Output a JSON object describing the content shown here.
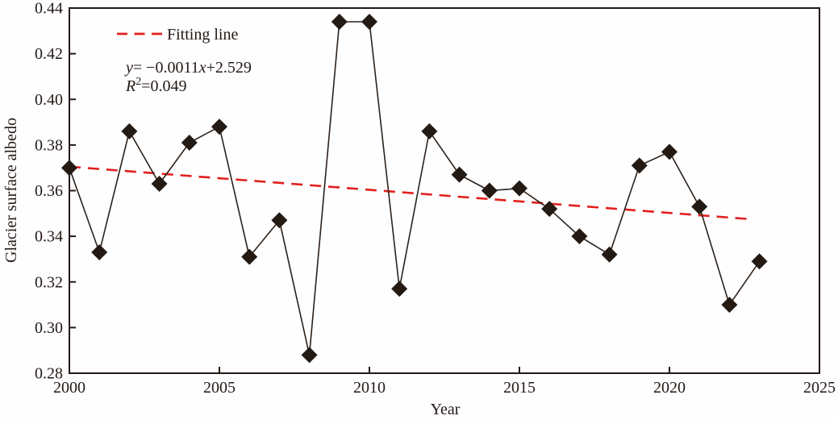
{
  "chart_data": {
    "type": "line",
    "title": "",
    "xlabel": "Year",
    "ylabel": "Glacier surface albedo",
    "xlim": [
      2000,
      2025
    ],
    "ylim": [
      0.28,
      0.44
    ],
    "grid": false,
    "legend_position": "top-left",
    "x_tick_labels": [
      "2000",
      "2005",
      "2010",
      "2015",
      "2020",
      "2025"
    ],
    "x_tick_values": [
      2000,
      2005,
      2010,
      2015,
      2020,
      2025
    ],
    "y_tick_labels": [
      "0.28",
      "0.30",
      "0.32",
      "0.34",
      "0.36",
      "0.38",
      "0.40",
      "0.42",
      "0.44"
    ],
    "y_tick_values": [
      0.28,
      0.3,
      0.32,
      0.34,
      0.36,
      0.38,
      0.4,
      0.42,
      0.44
    ],
    "x": [
      2000,
      2001,
      2002,
      2003,
      2004,
      2005,
      2006,
      2007,
      2008,
      2009,
      2010,
      2011,
      2012,
      2013,
      2014,
      2015,
      2016,
      2017,
      2018,
      2019,
      2020,
      2021,
      2022,
      2023
    ],
    "series": [
      {
        "name": "Glacier surface albedo",
        "marker": "diamond",
        "values": [
          0.37,
          0.333,
          0.386,
          0.363,
          0.381,
          0.388,
          0.331,
          0.347,
          0.288,
          0.434,
          0.434,
          0.317,
          0.386,
          0.367,
          0.36,
          0.361,
          0.352,
          0.34,
          0.332,
          0.371,
          0.377,
          0.353,
          0.31,
          0.329
        ]
      }
    ],
    "fit_line": {
      "label": "Fitting line",
      "equation": "y= −0.0011x+2.529",
      "r_squared": "R²=0.049",
      "slope": -0.0011,
      "intercept": 2.529,
      "x1": 2000,
      "y1": 0.3705,
      "x2": 2022.7,
      "y2": 0.3475,
      "equation_parts": [
        {
          "t": "y",
          "i": 1
        },
        {
          "t": "= −0.0011"
        },
        {
          "t": "x",
          "i": 1
        },
        {
          "t": "+2.529"
        }
      ],
      "r2_parts": [
        {
          "t": "R",
          "i": 1
        },
        {
          "t": "2",
          "sup": 1
        },
        {
          "t": "=0.049"
        }
      ]
    },
    "colors": {
      "series_line": "#2b211a",
      "marker": "#241a14",
      "fit": "#e1201e",
      "axis": "#231916",
      "text": "#231916"
    }
  }
}
